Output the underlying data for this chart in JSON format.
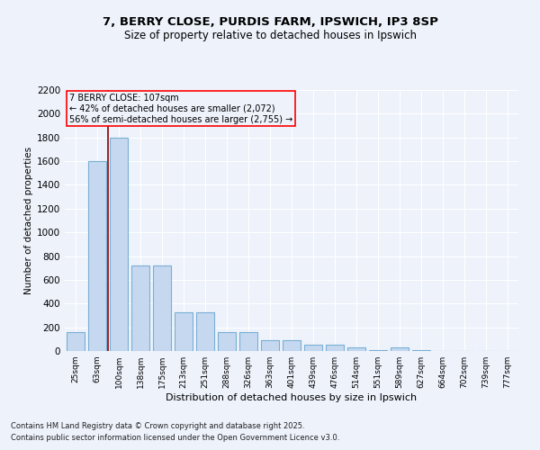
{
  "title1": "7, BERRY CLOSE, PURDIS FARM, IPSWICH, IP3 8SP",
  "title2": "Size of property relative to detached houses in Ipswich",
  "xlabel": "Distribution of detached houses by size in Ipswich",
  "ylabel": "Number of detached properties",
  "bar_labels": [
    "25sqm",
    "63sqm",
    "100sqm",
    "138sqm",
    "175sqm",
    "213sqm",
    "251sqm",
    "288sqm",
    "326sqm",
    "363sqm",
    "401sqm",
    "439sqm",
    "476sqm",
    "514sqm",
    "551sqm",
    "589sqm",
    "627sqm",
    "664sqm",
    "702sqm",
    "739sqm",
    "777sqm"
  ],
  "bar_values": [
    160,
    1600,
    1800,
    720,
    720,
    325,
    325,
    160,
    160,
    90,
    90,
    55,
    55,
    30,
    5,
    30,
    5,
    0,
    0,
    0,
    0
  ],
  "bar_color": "#c5d8f0",
  "bar_edge_color": "#7aafd4",
  "vline_x_index": 1.5,
  "vline_color": "#8b0000",
  "annotation_text": "7 BERRY CLOSE: 107sqm\n← 42% of detached houses are smaller (2,072)\n56% of semi-detached houses are larger (2,755) →",
  "annotation_box_color": "red",
  "ylim": [
    0,
    2200
  ],
  "yticks": [
    0,
    200,
    400,
    600,
    800,
    1000,
    1200,
    1400,
    1600,
    1800,
    2000,
    2200
  ],
  "bg_color": "#edf2fb",
  "footer1": "Contains HM Land Registry data © Crown copyright and database right 2025.",
  "footer2": "Contains public sector information licensed under the Open Government Licence v3.0.",
  "grid_color": "#ffffff"
}
